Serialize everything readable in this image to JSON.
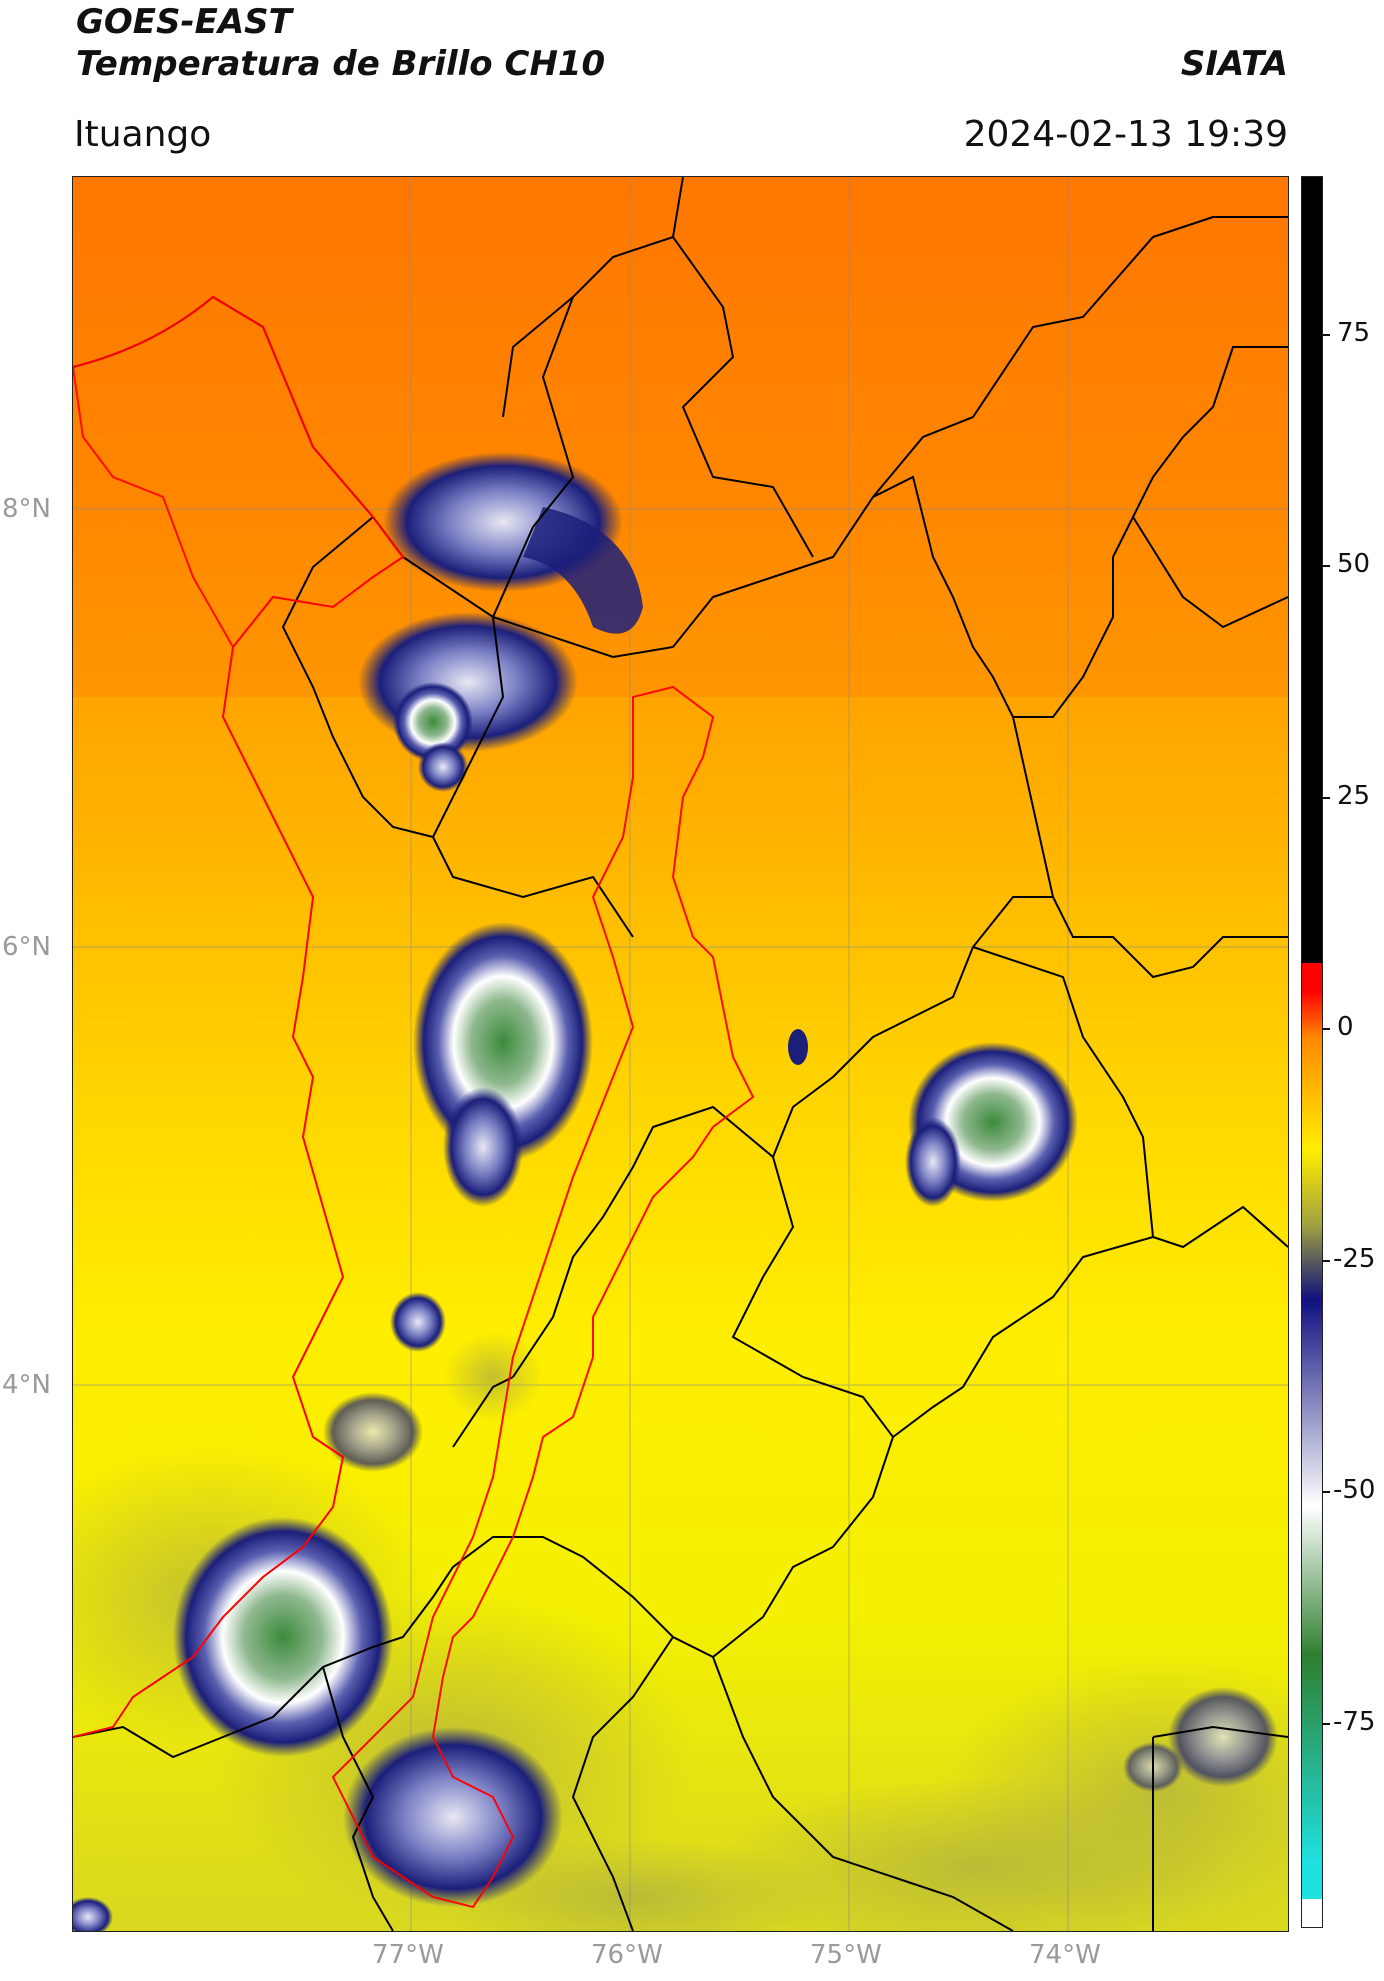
{
  "header": {
    "satellite": "GOES-EAST",
    "product": "Temperatura de Brillo CH10",
    "agency": "SIATA",
    "region": "Ituango",
    "datetime": "2024-02-13 19:39"
  },
  "map": {
    "latitude_labels": [
      "8°N",
      "6°N",
      "4°N"
    ],
    "longitude_labels": [
      "77°W",
      "76°W",
      "75°W",
      "74°W"
    ],
    "gridlines": true,
    "colors": {
      "warm_orange": "#ff7a00",
      "orange": "#ff9a00",
      "yellow": "#ffee00",
      "olive_yellow": "#d8d820",
      "navy": "#1c1f7a",
      "white": "#ffffff",
      "green": "#3c8a3c",
      "boundary_black": "#000000",
      "boundary_red": "#ff0000"
    }
  },
  "colorbar": {
    "tick_labels": [
      "75",
      "50",
      "25",
      "0",
      "-25",
      "-50",
      "-75"
    ],
    "range": [
      -95,
      92
    ],
    "colors": {
      "black": "#000000",
      "red": "#ff0000",
      "orange": "#ff8800",
      "yellow": "#ffee00",
      "olive": "#a0a040",
      "navy": "#101080",
      "white": "#ffffff",
      "green": "#2f7f2f",
      "cyan": "#20e0e0"
    }
  }
}
